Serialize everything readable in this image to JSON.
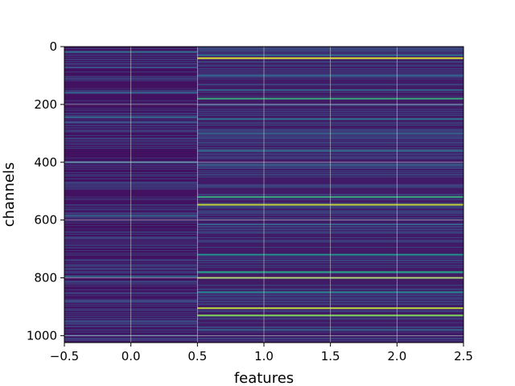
{
  "chart_data": {
    "type": "heatmap",
    "title": "",
    "xlabel": "features",
    "ylabel": "channels",
    "xlim": [
      -0.5,
      2.5
    ],
    "ylim": [
      1024,
      0
    ],
    "y_inverted": true,
    "grid": true,
    "colormap": "viridis",
    "colors": {
      "background": "#3a0d5c",
      "grid": "#cfcfcf",
      "axis": "#000000"
    },
    "x_ticks": [
      {
        "value": -0.5,
        "label": "−0.5"
      },
      {
        "value": 0.0,
        "label": "0.0"
      },
      {
        "value": 0.5,
        "label": "0.5"
      },
      {
        "value": 1.0,
        "label": "1.0"
      },
      {
        "value": 1.5,
        "label": "1.5"
      },
      {
        "value": 2.0,
        "label": "2.0"
      },
      {
        "value": 2.5,
        "label": "2.5"
      }
    ],
    "y_ticks": [
      {
        "value": 0,
        "label": "0"
      },
      {
        "value": 200,
        "label": "200"
      },
      {
        "value": 400,
        "label": "400"
      },
      {
        "value": 600,
        "label": "600"
      },
      {
        "value": 800,
        "label": "800"
      },
      {
        "value": 1000,
        "label": "1000"
      }
    ],
    "columns": [
      {
        "feature": 0,
        "x_range": [
          -0.5,
          0.5
        ],
        "base_level": 0.05,
        "highlights": [
          {
            "channel": 18,
            "level": 0.35
          },
          {
            "channel": 72,
            "level": 0.25
          },
          {
            "channel": 112,
            "level": 0.2
          },
          {
            "channel": 160,
            "level": 0.3
          },
          {
            "channel": 245,
            "level": 0.3
          },
          {
            "channel": 262,
            "level": 0.25
          },
          {
            "channel": 318,
            "level": 0.2
          },
          {
            "channel": 400,
            "level": 0.3
          },
          {
            "channel": 470,
            "level": 0.2
          },
          {
            "channel": 585,
            "level": 0.3
          },
          {
            "channel": 660,
            "level": 0.2
          },
          {
            "channel": 795,
            "level": 0.35
          },
          {
            "channel": 880,
            "level": 0.25
          },
          {
            "channel": 950,
            "level": 0.25
          },
          {
            "channel": 1000,
            "level": 0.2
          }
        ]
      },
      {
        "feature": 1,
        "x_range": [
          0.5,
          2.5
        ],
        "base_level": 0.08,
        "highlights": [
          {
            "channel": 30,
            "level": 0.35
          },
          {
            "channel": 40,
            "level": 0.95
          },
          {
            "channel": 100,
            "level": 0.3
          },
          {
            "channel": 150,
            "level": 0.3
          },
          {
            "channel": 180,
            "level": 0.6
          },
          {
            "channel": 250,
            "level": 0.35
          },
          {
            "channel": 300,
            "level": 0.3
          },
          {
            "channel": 360,
            "level": 0.35
          },
          {
            "channel": 410,
            "level": 0.3
          },
          {
            "channel": 520,
            "level": 0.6
          },
          {
            "channel": 547,
            "level": 0.9
          },
          {
            "channel": 615,
            "level": 0.3
          },
          {
            "channel": 720,
            "level": 0.5
          },
          {
            "channel": 780,
            "level": 0.55
          },
          {
            "channel": 800,
            "level": 0.85
          },
          {
            "channel": 850,
            "level": 0.4
          },
          {
            "channel": 905,
            "level": 0.9
          },
          {
            "channel": 930,
            "level": 0.8
          },
          {
            "channel": 980,
            "level": 0.3
          }
        ]
      }
    ]
  }
}
